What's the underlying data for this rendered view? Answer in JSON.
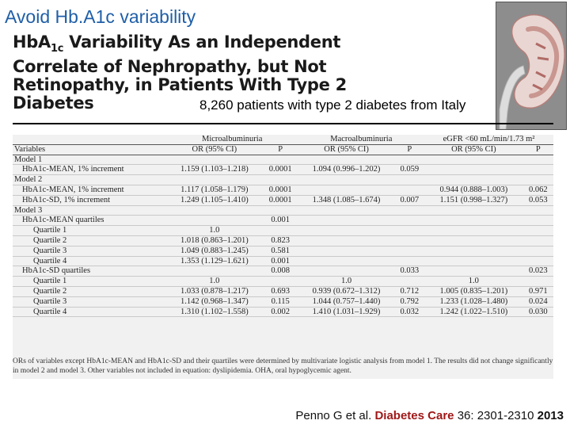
{
  "slide_title": "Avoid Hb.A1c variability",
  "paper_title": {
    "part1": "HbA",
    "sub": "1c",
    "part2": " Variability As an Independent Correlate of Nephropathy, but Not Retinopathy, in Patients With Type 2 Diabetes"
  },
  "subtitle": "8,260 patients with type 2 diabetes from Italy",
  "table": {
    "groups": [
      "Variables",
      "Microalbuminuria",
      "Macroalbuminuria",
      "eGFR <60 mL/min/1.73 m²"
    ],
    "columns": [
      "",
      "OR (95% CI)",
      "P",
      "OR (95% CI)",
      "P",
      "OR (95% CI)",
      "P"
    ],
    "rows": [
      {
        "indent": 0,
        "cells": [
          "Model 1",
          "",
          "",
          "",
          "",
          "",
          ""
        ]
      },
      {
        "indent": 1,
        "cells": [
          "HbA1c-MEAN, 1% increment",
          "1.159 (1.103–1.218)",
          "0.0001",
          "1.094 (0.996–1.202)",
          "0.059",
          "",
          ""
        ]
      },
      {
        "indent": 0,
        "cells": [
          "Model 2",
          "",
          "",
          "",
          "",
          "",
          ""
        ]
      },
      {
        "indent": 1,
        "cells": [
          "HbA1c-MEAN, 1% increment",
          "1.117 (1.058–1.179)",
          "0.0001",
          "",
          "",
          "0.944 (0.888–1.003)",
          "0.062"
        ]
      },
      {
        "indent": 1,
        "cells": [
          "HbA1c-SD, 1% increment",
          "1.249 (1.105–1.410)",
          "0.0001",
          "1.348 (1.085–1.674)",
          "0.007",
          "1.151 (0.998–1.327)",
          "0.053"
        ]
      },
      {
        "indent": 0,
        "cells": [
          "Model 3",
          "",
          "",
          "",
          "",
          "",
          ""
        ]
      },
      {
        "indent": 1,
        "cells": [
          "HbA1c-MEAN quartiles",
          "",
          "0.001",
          "",
          "",
          "",
          ""
        ]
      },
      {
        "indent": 2,
        "cells": [
          "Quartile 1",
          "1.0",
          "",
          "",
          "",
          "",
          ""
        ]
      },
      {
        "indent": 2,
        "cells": [
          "Quartile 2",
          "1.018 (0.863–1.201)",
          "0.823",
          "",
          "",
          "",
          ""
        ]
      },
      {
        "indent": 2,
        "cells": [
          "Quartile 3",
          "1.049 (0.883–1.245)",
          "0.581",
          "",
          "",
          "",
          ""
        ]
      },
      {
        "indent": 2,
        "cells": [
          "Quartile 4",
          "1.353 (1.129–1.621)",
          "0.001",
          "",
          "",
          "",
          ""
        ]
      },
      {
        "indent": 1,
        "cells": [
          "HbA1c-SD quartiles",
          "",
          "0.008",
          "",
          "0.033",
          "",
          "0.023"
        ]
      },
      {
        "indent": 2,
        "cells": [
          "Quartile 1",
          "1.0",
          "",
          "1.0",
          "",
          "1.0",
          ""
        ]
      },
      {
        "indent": 2,
        "cells": [
          "Quartile 2",
          "1.033 (0.878–1.217)",
          "0.693",
          "0.939 (0.672–1.312)",
          "0.712",
          "1.005 (0.835–1.201)",
          "0.971"
        ]
      },
      {
        "indent": 2,
        "cells": [
          "Quartile 3",
          "1.142 (0.968–1.347)",
          "0.115",
          "1.044 (0.757–1.440)",
          "0.792",
          "1.233 (1.028–1.480)",
          "0.024"
        ]
      },
      {
        "indent": 2,
        "cells": [
          "Quartile 4",
          "1.310 (1.102–1.558)",
          "0.002",
          "1.410 (1.031–1.929)",
          "0.032",
          "1.242 (1.022–1.510)",
          "0.030"
        ]
      }
    ],
    "footnote": "ORs of variables except HbA1c-MEAN and HbA1c-SD and their quartiles were determined by multivariate logistic analysis from model 1. The results did not change significantly in model 2 and model 3. Other variables not included in equation: dyslipidemia. OHA, oral hypoglycemic agent."
  },
  "citation": {
    "authors": "Penno G et al.",
    "journal": "Diabetes Care",
    "details": "36: 2301-2310",
    "year": "2013"
  }
}
